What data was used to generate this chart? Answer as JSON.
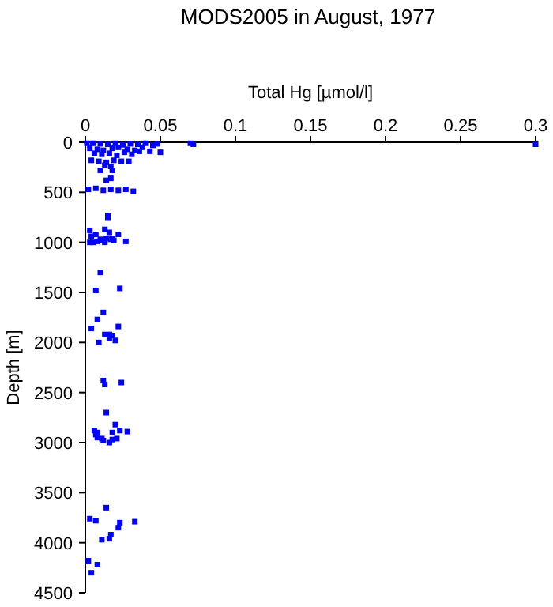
{
  "chart_data": {
    "type": "scatter",
    "title": "MODS2005 in August, 1977",
    "xlabel": "Total Hg [µmol/l]",
    "ylabel": "Depth [m]",
    "xlim": [
      0,
      0.3
    ],
    "xticks": [
      0,
      0.05,
      0.1,
      0.15,
      0.2,
      0.25,
      0.3
    ],
    "ylim": [
      4500,
      0
    ],
    "yticks": [
      0,
      500,
      1000,
      1500,
      2000,
      2500,
      3000,
      3500,
      4000,
      4500
    ],
    "marker": "square",
    "grid": false,
    "series": [
      {
        "color": "#0000ff",
        "x": [
          0.001,
          0.005,
          0.01,
          0.015,
          0.02,
          0.025,
          0.03,
          0.035,
          0.04,
          0.045,
          0.048,
          0.07,
          0.072,
          0.3,
          0.003,
          0.008,
          0.012,
          0.018,
          0.022,
          0.028,
          0.033,
          0.038,
          0.043,
          0.006,
          0.011,
          0.016,
          0.021,
          0.026,
          0.031,
          0.036,
          0.05,
          0.004,
          0.009,
          0.014,
          0.019,
          0.024,
          0.029,
          0.013,
          0.017,
          0.002,
          0.007,
          0.012,
          0.017,
          0.022,
          0.027,
          0.032,
          0.01,
          0.018,
          0.014,
          0.017,
          0.004,
          0.01,
          0.017,
          0.022,
          0.027,
          0.013,
          0.015,
          0.003,
          0.008,
          0.011,
          0.014,
          0.016,
          0.003,
          0.007,
          0.013,
          0.018,
          0.005,
          0.013,
          0.019,
          0.015,
          0.007,
          0.01,
          0.023,
          0.004,
          0.009,
          0.013,
          0.016,
          0.018,
          0.008,
          0.012,
          0.02,
          0.016,
          0.022,
          0.012,
          0.013,
          0.024,
          0.008,
          0.018,
          0.028,
          0.006,
          0.011,
          0.023,
          0.014,
          0.007,
          0.016,
          0.008,
          0.02,
          0.012,
          0.018,
          0.021,
          0.014,
          0.003,
          0.007,
          0.023,
          0.017,
          0.011,
          0.016,
          0.033,
          0.022,
          0.002,
          0.004,
          0.008
        ],
        "values": [
          10,
          10,
          15,
          20,
          10,
          25,
          15,
          20,
          10,
          30,
          15,
          10,
          20,
          20,
          60,
          70,
          80,
          60,
          50,
          70,
          80,
          50,
          90,
          110,
          120,
          110,
          130,
          100,
          120,
          90,
          100,
          180,
          190,
          200,
          180,
          190,
          190,
          230,
          240,
          470,
          460,
          480,
          470,
          480,
          470,
          490,
          280,
          280,
          380,
          360,
          940,
          970,
          970,
          920,
          990,
          870,
          730,
          1000,
          990,
          980,
          960,
          900,
          880,
          920,
          980,
          960,
          1000,
          1000,
          980,
          750,
          1480,
          1300,
          1460,
          1860,
          2000,
          1920,
          1920,
          1930,
          1770,
          1700,
          1980,
          1960,
          1840,
          2380,
          2420,
          2400,
          2900,
          2900,
          2890,
          2880,
          2960,
          2880,
          2700,
          2920,
          3000,
          2950,
          2820,
          2980,
          2970,
          2960,
          3650,
          3760,
          3780,
          3800,
          3920,
          3970,
          3960,
          3790,
          3850,
          4180,
          4300,
          4220
        ]
      }
    ]
  }
}
